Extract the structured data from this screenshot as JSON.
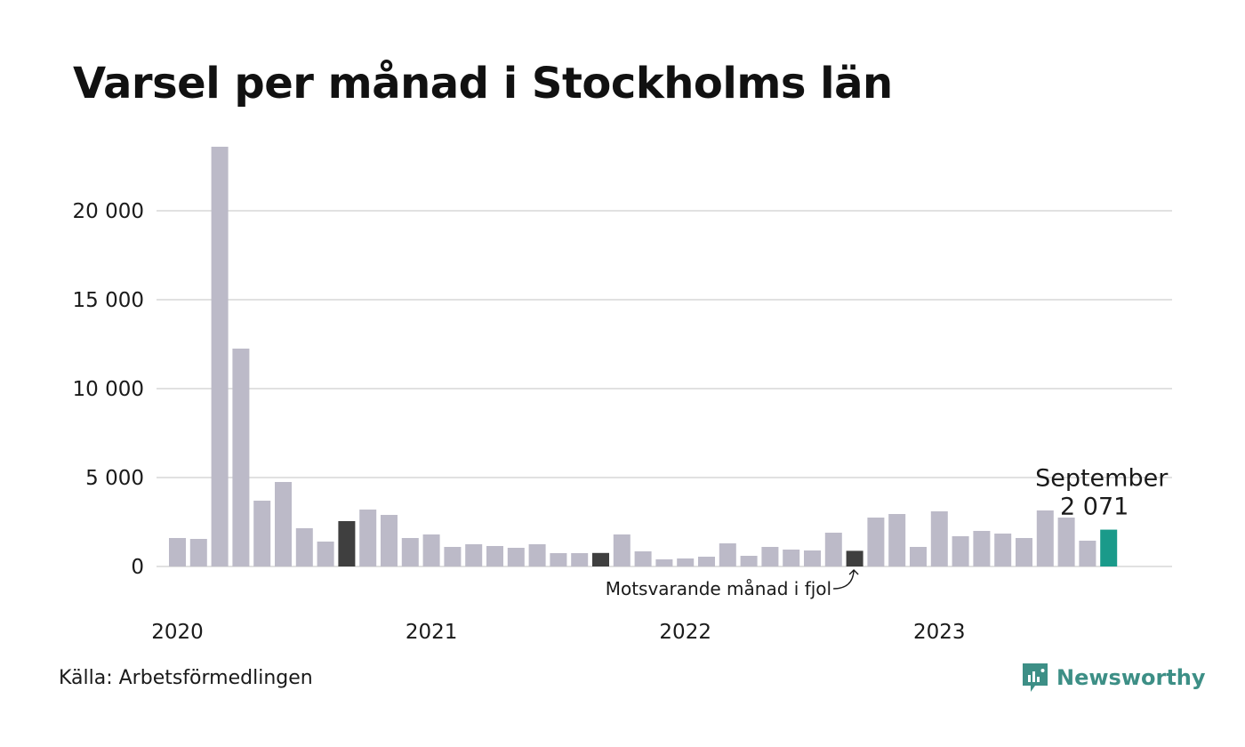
{
  "title": "Varsel per månad i Stockholms län",
  "source": "Källa: Arbetsförmedlingen",
  "brand": {
    "name": "Newsworthy",
    "icon": "newsworthy-logo-icon"
  },
  "colors": {
    "bar": "#bcbac8",
    "previous_year": "#3f3f3f",
    "current": "#1a9a8a",
    "grid": "#e1e1e1",
    "brand": "#3d8f86"
  },
  "chart_data": {
    "type": "bar",
    "title": "Varsel per månad i Stockholms län",
    "xlabel": "",
    "ylabel": "",
    "ylim": [
      0,
      24000
    ],
    "yticks": [
      0,
      5000,
      10000,
      15000,
      20000
    ],
    "ytick_labels": [
      "0",
      "5 000",
      "10 000",
      "15 000",
      "20 000"
    ],
    "year_labels": [
      {
        "label": "2020",
        "index": 0
      },
      {
        "label": "2021",
        "index": 12
      },
      {
        "label": "2022",
        "index": 24
      },
      {
        "label": "2023",
        "index": 36
      }
    ],
    "grid": true,
    "categories": [
      "2020-01",
      "2020-02",
      "2020-03",
      "2020-04",
      "2020-05",
      "2020-06",
      "2020-07",
      "2020-08",
      "2020-09",
      "2020-10",
      "2020-11",
      "2020-12",
      "2021-01",
      "2021-02",
      "2021-03",
      "2021-04",
      "2021-05",
      "2021-06",
      "2021-07",
      "2021-08",
      "2021-09",
      "2021-10",
      "2021-11",
      "2021-12",
      "2022-01",
      "2022-02",
      "2022-03",
      "2022-04",
      "2022-05",
      "2022-06",
      "2022-07",
      "2022-08",
      "2022-09",
      "2022-10",
      "2022-11",
      "2022-12",
      "2023-01",
      "2023-02",
      "2023-03",
      "2023-04",
      "2023-05",
      "2023-06",
      "2023-07",
      "2023-08",
      "2023-09"
    ],
    "values": [
      1600,
      1550,
      23600,
      12250,
      3700,
      4750,
      2150,
      1400,
      2550,
      3200,
      2900,
      1600,
      1800,
      1100,
      1250,
      1150,
      1050,
      1250,
      750,
      750,
      760,
      1800,
      850,
      400,
      450,
      550,
      1300,
      600,
      1100,
      950,
      900,
      1900,
      880,
      2750,
      2950,
      1100,
      3100,
      1700,
      2000,
      1850,
      1600,
      3150,
      2750,
      1450,
      2071
    ],
    "highlight_previous_year": [
      8,
      20,
      32
    ],
    "highlight_current": 44,
    "annotations": {
      "current_month": "September",
      "current_value": "2 071",
      "previous_year": "Motsvarande månad i fjol"
    }
  }
}
